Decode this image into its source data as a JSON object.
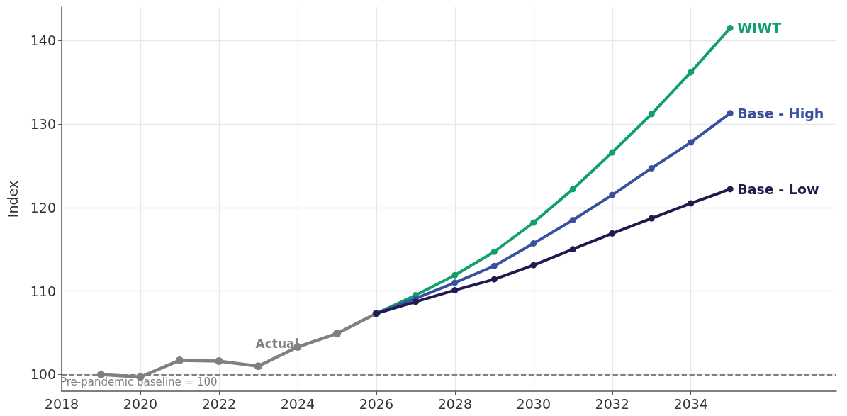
{
  "chart_data": {
    "type": "line",
    "ylabel": "Index",
    "xlim": [
      2018,
      2037.7
    ],
    "xticks": [
      2018,
      2020,
      2022,
      2024,
      2026,
      2028,
      2030,
      2032,
      2034
    ],
    "ylim": [
      98,
      144
    ],
    "yticks": [
      100,
      110,
      120,
      130,
      140
    ],
    "grid": true,
    "legend": false,
    "marker": "circle",
    "line_style": "solid",
    "ref_lines": [
      {
        "axis": "y",
        "value": 100,
        "label": "Pre-pandemic baseline = 100",
        "color": "#808080",
        "line_style": "dashed"
      }
    ],
    "series": [
      {
        "name": "Actual",
        "color": "#808080",
        "x": [
          2019,
          2020,
          2021,
          2022,
          2023,
          2024,
          2025,
          2026
        ],
        "values": [
          100.0,
          99.7,
          101.7,
          101.6,
          101.0,
          103.3,
          104.9,
          107.3
        ]
      },
      {
        "name": "WIWT",
        "color": "#12a06a",
        "x": [
          2026,
          2027,
          2028,
          2029,
          2030,
          2031,
          2032,
          2033,
          2034,
          2035
        ],
        "values": [
          107.3,
          109.5,
          111.9,
          114.7,
          118.2,
          122.2,
          126.6,
          131.2,
          136.2,
          141.5
        ]
      },
      {
        "name": "Base - High",
        "color": "#3a4fa0",
        "x": [
          2026,
          2027,
          2028,
          2029,
          2030,
          2031,
          2032,
          2033,
          2034,
          2035
        ],
        "values": [
          107.3,
          109.1,
          111.0,
          113.0,
          115.7,
          118.5,
          121.5,
          124.7,
          127.8,
          131.3
        ]
      },
      {
        "name": "Base - Low",
        "color": "#201a4e",
        "x": [
          2026,
          2027,
          2028,
          2029,
          2030,
          2031,
          2032,
          2033,
          2034,
          2035
        ],
        "values": [
          107.3,
          108.7,
          110.1,
          111.4,
          113.1,
          115.0,
          116.9,
          118.7,
          120.5,
          122.2
        ]
      }
    ]
  }
}
